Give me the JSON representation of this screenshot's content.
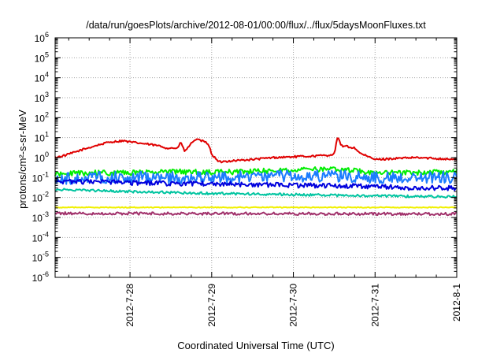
{
  "chart_data": {
    "type": "line",
    "title": "/data/run/goesPlots/archive/2012-08-01/00:00/flux/../flux/5daysMoonFluxes.txt",
    "xlabel": "Coordinated Universal Time (UTC)",
    "ylabel": "protons/cm²-s-sr-MeV",
    "x_unit": "days",
    "xlim": [
      "2012-07-27T02:00",
      "2012-08-01T00:00"
    ],
    "x_ticks": [
      "2012-7-28",
      "2012-7-29",
      "2012-7-30",
      "2012-7-31",
      "2012-8-1"
    ],
    "y_scale": "log",
    "ylim": [
      1e-06,
      1000000.0
    ],
    "y_ticks": [
      {
        "base": "10",
        "exp": "-6"
      },
      {
        "base": "10",
        "exp": "-5"
      },
      {
        "base": "10",
        "exp": "-4"
      },
      {
        "base": "10",
        "exp": "-3"
      },
      {
        "base": "10",
        "exp": "-2"
      },
      {
        "base": "10",
        "exp": "-1"
      },
      {
        "base": "10",
        "exp": "0"
      },
      {
        "base": "10",
        "exp": "1"
      },
      {
        "base": "10",
        "exp": "2"
      },
      {
        "base": "10",
        "exp": "3"
      },
      {
        "base": "10",
        "exp": "4"
      },
      {
        "base": "10",
        "exp": "5"
      },
      {
        "base": "10",
        "exp": "6"
      }
    ],
    "grid": true,
    "series": [
      {
        "color": "#e00000",
        "noise": 0.05,
        "points": [
          [
            "2012-07-27T02:00",
            1.0
          ],
          [
            "2012-07-27T05:00",
            1.3
          ],
          [
            "2012-07-27T10:00",
            2.5
          ],
          [
            "2012-07-27T14:00",
            4.0
          ],
          [
            "2012-07-27T18:00",
            6.0
          ],
          [
            "2012-07-27T22:00",
            7.0
          ],
          [
            "2012-07-28T00:00",
            6.0
          ],
          [
            "2012-07-28T04:00",
            5.0
          ],
          [
            "2012-07-28T08:00",
            4.0
          ],
          [
            "2012-07-28T11:00",
            3.0
          ],
          [
            "2012-07-28T14:00",
            3.0
          ],
          [
            "2012-07-28T15:00",
            6.0
          ],
          [
            "2012-07-28T16:00",
            2.0
          ],
          [
            "2012-07-28T18:00",
            5.0
          ],
          [
            "2012-07-28T19:00",
            8.0
          ],
          [
            "2012-07-28T21:00",
            7.0
          ],
          [
            "2012-07-28T23:00",
            5.0
          ],
          [
            "2012-07-29T00:00",
            1.5
          ],
          [
            "2012-07-29T02:00",
            0.6
          ],
          [
            "2012-07-29T06:00",
            0.7
          ],
          [
            "2012-07-29T12:00",
            0.8
          ],
          [
            "2012-07-29T18:00",
            1.0
          ],
          [
            "2012-07-30T00:00",
            1.1
          ],
          [
            "2012-07-30T06:00",
            1.2
          ],
          [
            "2012-07-30T10:00",
            1.3
          ],
          [
            "2012-07-30T12:00",
            1.5
          ],
          [
            "2012-07-30T13:00",
            11.0
          ],
          [
            "2012-07-30T14:00",
            4.0
          ],
          [
            "2012-07-30T16:00",
            3.5
          ],
          [
            "2012-07-30T18:00",
            3.0
          ],
          [
            "2012-07-30T20:00",
            1.5
          ],
          [
            "2012-07-31T00:00",
            0.8
          ],
          [
            "2012-07-31T06:00",
            0.9
          ],
          [
            "2012-07-31T12:00",
            1.0
          ],
          [
            "2012-07-31T18:00",
            0.9
          ],
          [
            "2012-08-01T00:00",
            0.8
          ]
        ]
      },
      {
        "color": "#00ee00",
        "noise": 0.13,
        "points": [
          [
            "2012-07-27T02:00",
            0.15
          ],
          [
            "2012-07-27T12:00",
            0.17
          ],
          [
            "2012-07-28T00:00",
            0.17
          ],
          [
            "2012-07-28T12:00",
            0.2
          ],
          [
            "2012-07-29T00:00",
            0.18
          ],
          [
            "2012-07-29T12:00",
            0.2
          ],
          [
            "2012-07-30T00:00",
            0.25
          ],
          [
            "2012-07-30T12:00",
            0.25
          ],
          [
            "2012-07-31T00:00",
            0.18
          ],
          [
            "2012-07-31T12:00",
            0.17
          ],
          [
            "2012-08-01T00:00",
            0.2
          ]
        ]
      },
      {
        "color": "#1a7cff",
        "noise": 0.3,
        "points": [
          [
            "2012-07-27T02:00",
            0.08
          ],
          [
            "2012-07-27T12:00",
            0.1
          ],
          [
            "2012-07-28T00:00",
            0.1
          ],
          [
            "2012-07-28T12:00",
            0.1
          ],
          [
            "2012-07-29T00:00",
            0.1
          ],
          [
            "2012-07-29T12:00",
            0.11
          ],
          [
            "2012-07-30T00:00",
            0.12
          ],
          [
            "2012-07-30T12:00",
            0.12
          ],
          [
            "2012-07-31T00:00",
            0.1
          ],
          [
            "2012-07-31T12:00",
            0.1
          ],
          [
            "2012-08-01T00:00",
            0.1
          ]
        ]
      },
      {
        "color": "#0000dd",
        "noise": 0.12,
        "points": [
          [
            "2012-07-27T02:00",
            0.06
          ],
          [
            "2012-07-27T12:00",
            0.06
          ],
          [
            "2012-07-28T00:00",
            0.055
          ],
          [
            "2012-07-28T12:00",
            0.05
          ],
          [
            "2012-07-29T00:00",
            0.05
          ],
          [
            "2012-07-29T12:00",
            0.045
          ],
          [
            "2012-07-30T00:00",
            0.04
          ],
          [
            "2012-07-30T12:00",
            0.04
          ],
          [
            "2012-07-31T00:00",
            0.035
          ],
          [
            "2012-07-31T12:00",
            0.03
          ],
          [
            "2012-08-01T00:00",
            0.03
          ]
        ]
      },
      {
        "color": "#00c4a0",
        "noise": 0.06,
        "points": [
          [
            "2012-07-27T02:00",
            0.025
          ],
          [
            "2012-07-28T00:00",
            0.02
          ],
          [
            "2012-07-29T00:00",
            0.016
          ],
          [
            "2012-07-30T00:00",
            0.014
          ],
          [
            "2012-07-31T00:00",
            0.012
          ],
          [
            "2012-08-01T00:00",
            0.011
          ]
        ]
      },
      {
        "color": "#f0f000",
        "noise": 0.02,
        "points": [
          [
            "2012-07-27T02:00",
            0.0032
          ],
          [
            "2012-08-01T00:00",
            0.0032
          ]
        ]
      },
      {
        "color": "#a0306a",
        "noise": 0.07,
        "points": [
          [
            "2012-07-27T02:00",
            0.0016
          ],
          [
            "2012-08-01T00:00",
            0.0015
          ]
        ]
      }
    ]
  }
}
